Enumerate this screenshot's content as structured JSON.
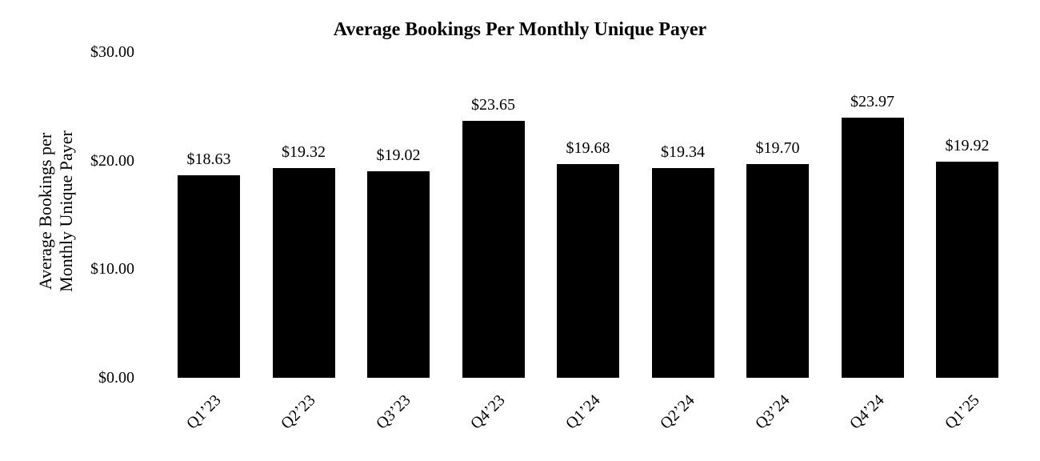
{
  "chart_data": {
    "type": "bar",
    "title": "Average Bookings Per Monthly Unique Payer",
    "ylabel_lines": [
      "Average Bookings per",
      "Monthly Unique Payer"
    ],
    "categories": [
      "Q1’23",
      "Q2’23",
      "Q3’23",
      "Q4’23",
      "Q1’24",
      "Q2’24",
      "Q3’24",
      "Q4’24",
      "Q1’25"
    ],
    "values": [
      18.63,
      19.32,
      19.02,
      23.65,
      19.68,
      19.34,
      19.7,
      23.97,
      19.92
    ],
    "value_labels": [
      "$18.63",
      "$19.32",
      "$19.02",
      "$23.65",
      "$19.68",
      "$19.34",
      "$19.70",
      "$23.97",
      "$19.92"
    ],
    "ylim": [
      0,
      30
    ],
    "yticks": {
      "values": [
        0,
        10,
        20,
        30
      ],
      "labels": [
        "$0.00",
        "$10.00",
        "$20.00",
        "$30.00"
      ]
    },
    "bar_color": "#000000",
    "background_color": "#ffffff",
    "grid": false,
    "legend": "none",
    "xlabel": "",
    "ylabel": "Average Bookings per Monthly Unique Payer"
  }
}
